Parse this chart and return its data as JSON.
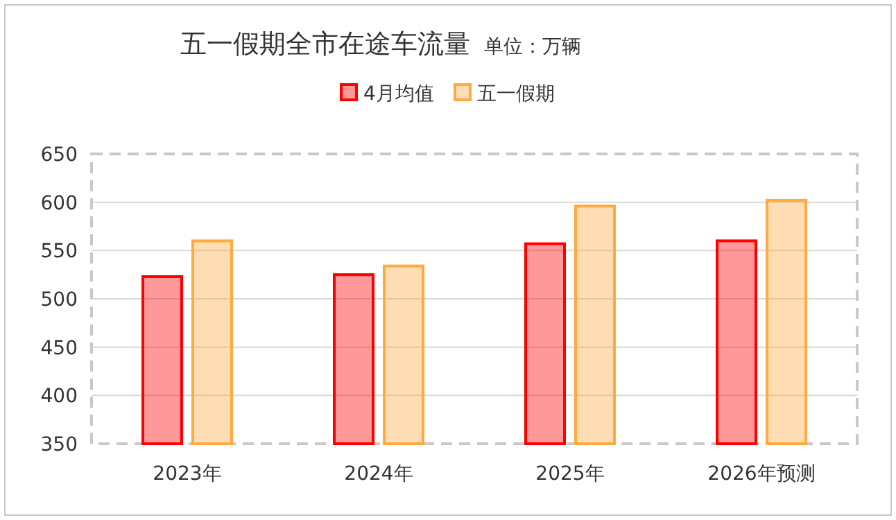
{
  "chart_data": {
    "type": "bar",
    "title": "五一假期全市在途车流量",
    "subtitle": "单位：万辆",
    "categories": [
      "2023年",
      "2024年",
      "2025年",
      "2026年预测"
    ],
    "series": [
      {
        "name": "4月均值",
        "color": "#ff0000",
        "values": [
          523,
          525,
          557,
          560
        ]
      },
      {
        "name": "五一假期",
        "color": "#ffa940",
        "values": [
          560,
          534,
          596,
          602
        ]
      }
    ],
    "ylim": [
      350,
      650
    ],
    "yticks": [
      350,
      400,
      450,
      500,
      550,
      600,
      650
    ],
    "grid": "y",
    "legend": "top"
  }
}
